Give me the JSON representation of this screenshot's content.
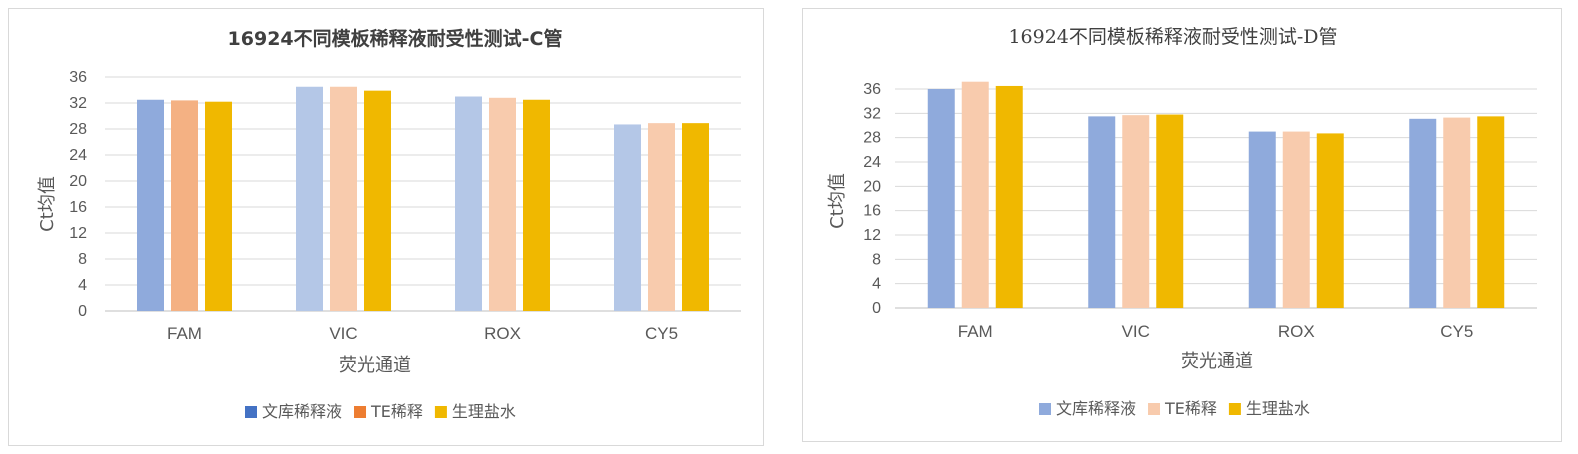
{
  "chart_data": [
    {
      "type": "bar",
      "title": "16924不同模板稀释液耐受性测试-C管",
      "xlabel": "荧光通道",
      "ylabel": "Ct均值",
      "categories": [
        "FAM",
        "VIC",
        "ROX",
        "CY5"
      ],
      "ylim": [
        0,
        36
      ],
      "yticks": [
        0,
        4,
        8,
        12,
        16,
        20,
        24,
        28,
        32,
        36
      ],
      "grid": true,
      "legend_position": "bottom",
      "series": [
        {
          "name": "文库稀释液",
          "values": [
            32.5,
            34.5,
            33.0,
            28.7
          ],
          "legend_color": "#4472c4",
          "bar_colors": [
            "#8faadc",
            "#b4c7e7",
            "#b4c7e7",
            "#b4c7e7"
          ]
        },
        {
          "name": "TE稀释",
          "values": [
            32.4,
            34.5,
            32.8,
            28.9
          ],
          "legend_color": "#ed7d31",
          "bar_colors": [
            "#f4b183",
            "#f8cbad",
            "#f8cbad",
            "#f8cbad"
          ]
        },
        {
          "name": "生理盐水",
          "values": [
            32.2,
            33.9,
            32.5,
            28.9
          ],
          "legend_color": "#f0b800",
          "bar_colors": [
            "#f0b800",
            "#f0b800",
            "#f0b800",
            "#f0b800"
          ]
        }
      ]
    },
    {
      "type": "bar",
      "title": "16924不同模板稀释液耐受性测试-D管",
      "xlabel": "荧光通道",
      "ylabel": "Ct均值",
      "categories": [
        "FAM",
        "VIC",
        "ROX",
        "CY5"
      ],
      "ylim": [
        0,
        36
      ],
      "yticks": [
        0,
        4,
        8,
        12,
        16,
        20,
        24,
        28,
        32,
        36
      ],
      "grid": true,
      "legend_position": "bottom",
      "series": [
        {
          "name": "文库稀释液",
          "values": [
            36.0,
            31.5,
            29.0,
            31.1
          ],
          "legend_color": "#8faadc",
          "bar_colors": [
            "#8faadc",
            "#8faadc",
            "#8faadc",
            "#8faadc"
          ]
        },
        {
          "name": "TE稀释",
          "values": [
            37.2,
            31.7,
            29.0,
            31.3
          ],
          "legend_color": "#f8cbad",
          "bar_colors": [
            "#f8cbad",
            "#f8cbad",
            "#f8cbad",
            "#f8cbad"
          ]
        },
        {
          "name": "生理盐水",
          "values": [
            36.5,
            31.8,
            28.7,
            31.5
          ],
          "legend_color": "#f0b800",
          "bar_colors": [
            "#f0b800",
            "#f0b800",
            "#f0b800",
            "#f0b800"
          ]
        }
      ]
    }
  ]
}
